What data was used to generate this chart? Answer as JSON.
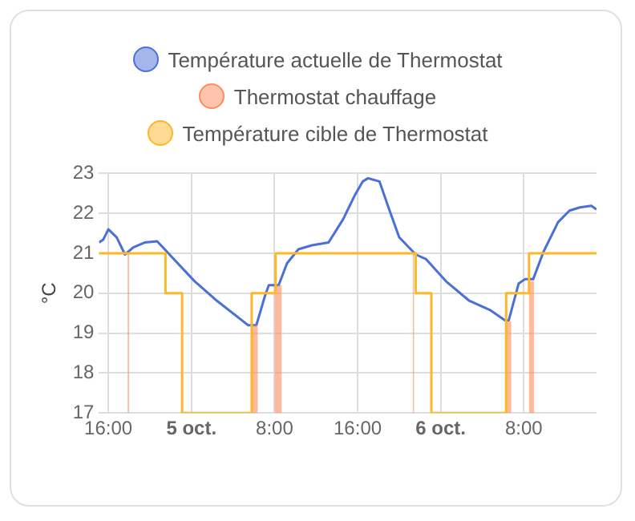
{
  "chart_data": {
    "type": "line",
    "ylabel": "°C",
    "legend": "top",
    "grid": true,
    "marker": "none",
    "xlim": [
      "--10-04T15:06",
      "--10-06T15:00"
    ],
    "xticks": [
      {
        "value": "--10-04T16:00",
        "label": "16:00"
      },
      {
        "value": "--10-05",
        "label": "5 oct."
      },
      {
        "value": "--10-05T08:00",
        "label": "8:00"
      },
      {
        "value": "--10-05T16:00",
        "label": "16:00"
      },
      {
        "value": "--10-06",
        "label": "6 oct."
      },
      {
        "value": "--10-06T08:00",
        "label": "8:00"
      }
    ],
    "ylim": [
      17,
      23
    ],
    "yticks": [
      17,
      18,
      19,
      20,
      21,
      22,
      23
    ],
    "series": [
      {
        "name": "Température actuelle de Thermostat",
        "color": "#4a6fd6",
        "type": "line",
        "x": [
          "--10-04T15:06",
          "--10-04T15:30",
          "--10-04T16:00",
          "--10-04T16:48",
          "--10-04T17:36",
          "--10-04T18:24",
          "--10-04T19:30",
          "--10-04T20:42",
          "--10-04T21:36",
          "--10-05T00:18",
          "--10-05T02:30",
          "--10-05T05:27",
          "--10-05T06:15",
          "--10-05T07:06",
          "--10-05T07:27",
          "--10-05T08:24",
          "--10-05T09:12",
          "--10-05T10:18",
          "--10-05T11:36",
          "--10-05T13:12",
          "--10-05T14:36",
          "--10-05T15:42",
          "--10-05T16:30",
          "--10-05T17:00",
          "--10-05T18:06",
          "--10-05T18:54",
          "--10-05T20:00",
          "--10-05T21:36",
          "--10-05T22:36",
          "--10-06T00:30",
          "--10-06T02:42",
          "--10-06T04:48",
          "--10-06T06:12",
          "--10-06T06:33",
          "--10-06T07:30",
          "--10-06T08:06",
          "--10-06T08:54",
          "--10-06T09:54",
          "--10-06T11:18",
          "--10-06T12:24",
          "--10-06T13:24",
          "--10-06T14:30",
          "--10-06T15:00"
        ],
        "values": [
          21.27,
          21.34,
          21.6,
          21.4,
          20.97,
          21.15,
          21.27,
          21.3,
          21.05,
          20.3,
          19.8,
          19.2,
          19.2,
          19.95,
          20.2,
          20.2,
          20.75,
          21.1,
          21.2,
          21.27,
          21.85,
          22.44,
          22.8,
          22.88,
          22.8,
          22.2,
          21.4,
          20.97,
          20.85,
          20.3,
          19.82,
          19.57,
          19.32,
          19.32,
          20.24,
          20.35,
          20.35,
          21.04,
          21.78,
          22.07,
          22.15,
          22.19,
          22.1
        ]
      },
      {
        "name": "Thermostat chauffage",
        "color": "#ff8a5c",
        "type": "area",
        "x": [
          "--10-04T17:51",
          "--10-04T18:00",
          "--10-04T18:06",
          "--10-05T05:48",
          "--10-05T06:24",
          "--10-05T06:30",
          "--10-05T08:00",
          "--10-05T08:42",
          "--10-05T08:48",
          "--10-05T21:18",
          "--10-05T21:27",
          "--10-05T21:30",
          "--10-06T06:12",
          "--10-06T06:48",
          "--10-06T06:54",
          "--10-06T08:30",
          "--10-06T09:00"
        ],
        "values": [
          21,
          21,
          null,
          19.2,
          19.2,
          null,
          20.2,
          20.2,
          null,
          21,
          21,
          null,
          19.3,
          19.3,
          null,
          20.3,
          20.3
        ]
      },
      {
        "name": "Température cible de Thermostat",
        "color": "#fbb829",
        "type": "step",
        "x": [
          "--10-04T15:06",
          "--10-04T21:30",
          "--10-04T23:06",
          "--10-05T05:48",
          "--10-05T08:06",
          "--10-05T21:36",
          "--10-05T23:06",
          "--10-06T06:18",
          "--10-06T08:30",
          "--10-06T15:00"
        ],
        "values": [
          21,
          20,
          17,
          20,
          21,
          20,
          17,
          20,
          21,
          21
        ]
      }
    ]
  }
}
